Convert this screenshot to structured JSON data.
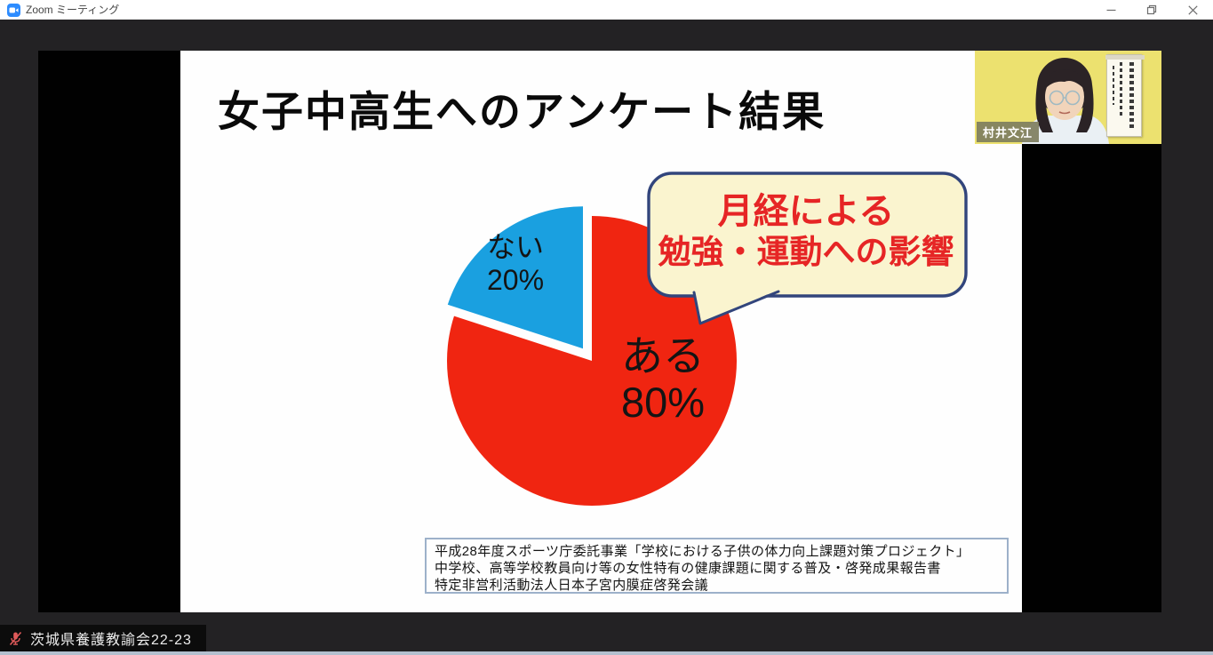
{
  "titlebar": {
    "app_title": "Zoom ミーティング",
    "controls": {
      "minimize": "minimize",
      "restore": "restore",
      "close": "close"
    }
  },
  "slide": {
    "title": "女子中高生へのアンケート結果",
    "pie_labels": {
      "no_name": "ない",
      "no_value": "20%",
      "yes_name": "ある",
      "yes_value": "80%"
    },
    "bubble": {
      "line1": "月経による",
      "line2": "勉強・運動への影響"
    },
    "citation_lines": [
      "平成28年度スポーツ庁委託事業「学校における子供の体力向上課題対策プロジェクト」",
      "中学校、高等学校教員向け等の女性特有の健康課題に関する普及・啓発成果報告書",
      "特定非営利活動法人日本子宮内膜症啓発会議"
    ]
  },
  "webcam": {
    "participant_name": "村井文江"
  },
  "statusbar": {
    "account_name": "茨城県養護教諭会22-23"
  },
  "colors": {
    "pie_yes": "#F02511",
    "pie_no": "#1AA0E0",
    "bubble_fill": "#FAF4CF",
    "bubble_border": "#32457C",
    "bubble_text": "#E62525",
    "webcam_bg": "#ECE16F",
    "zoom_brand": "#2D8CFF",
    "mic_muted": "#E05A5A"
  },
  "chart_data": {
    "type": "pie",
    "title": "女子中高生へのアンケート結果",
    "labels": [
      "ある",
      "ない"
    ],
    "values": [
      80,
      20
    ],
    "unit": "%",
    "colors": [
      "#F02511",
      "#1AA0E0"
    ],
    "start_angle_deg": 90,
    "exploded_label": "ない",
    "annotation": "月経による勉強・運動への影響",
    "legend_position": "none",
    "source": [
      "平成28年度スポーツ庁委託事業「学校における子供の体力向上課題対策プロジェクト」",
      "中学校、高等学校教員向け等の女性特有の健康課題に関する普及・啓発成果報告書",
      "特定非営利活動法人日本子宮内膜症啓発会議"
    ]
  }
}
